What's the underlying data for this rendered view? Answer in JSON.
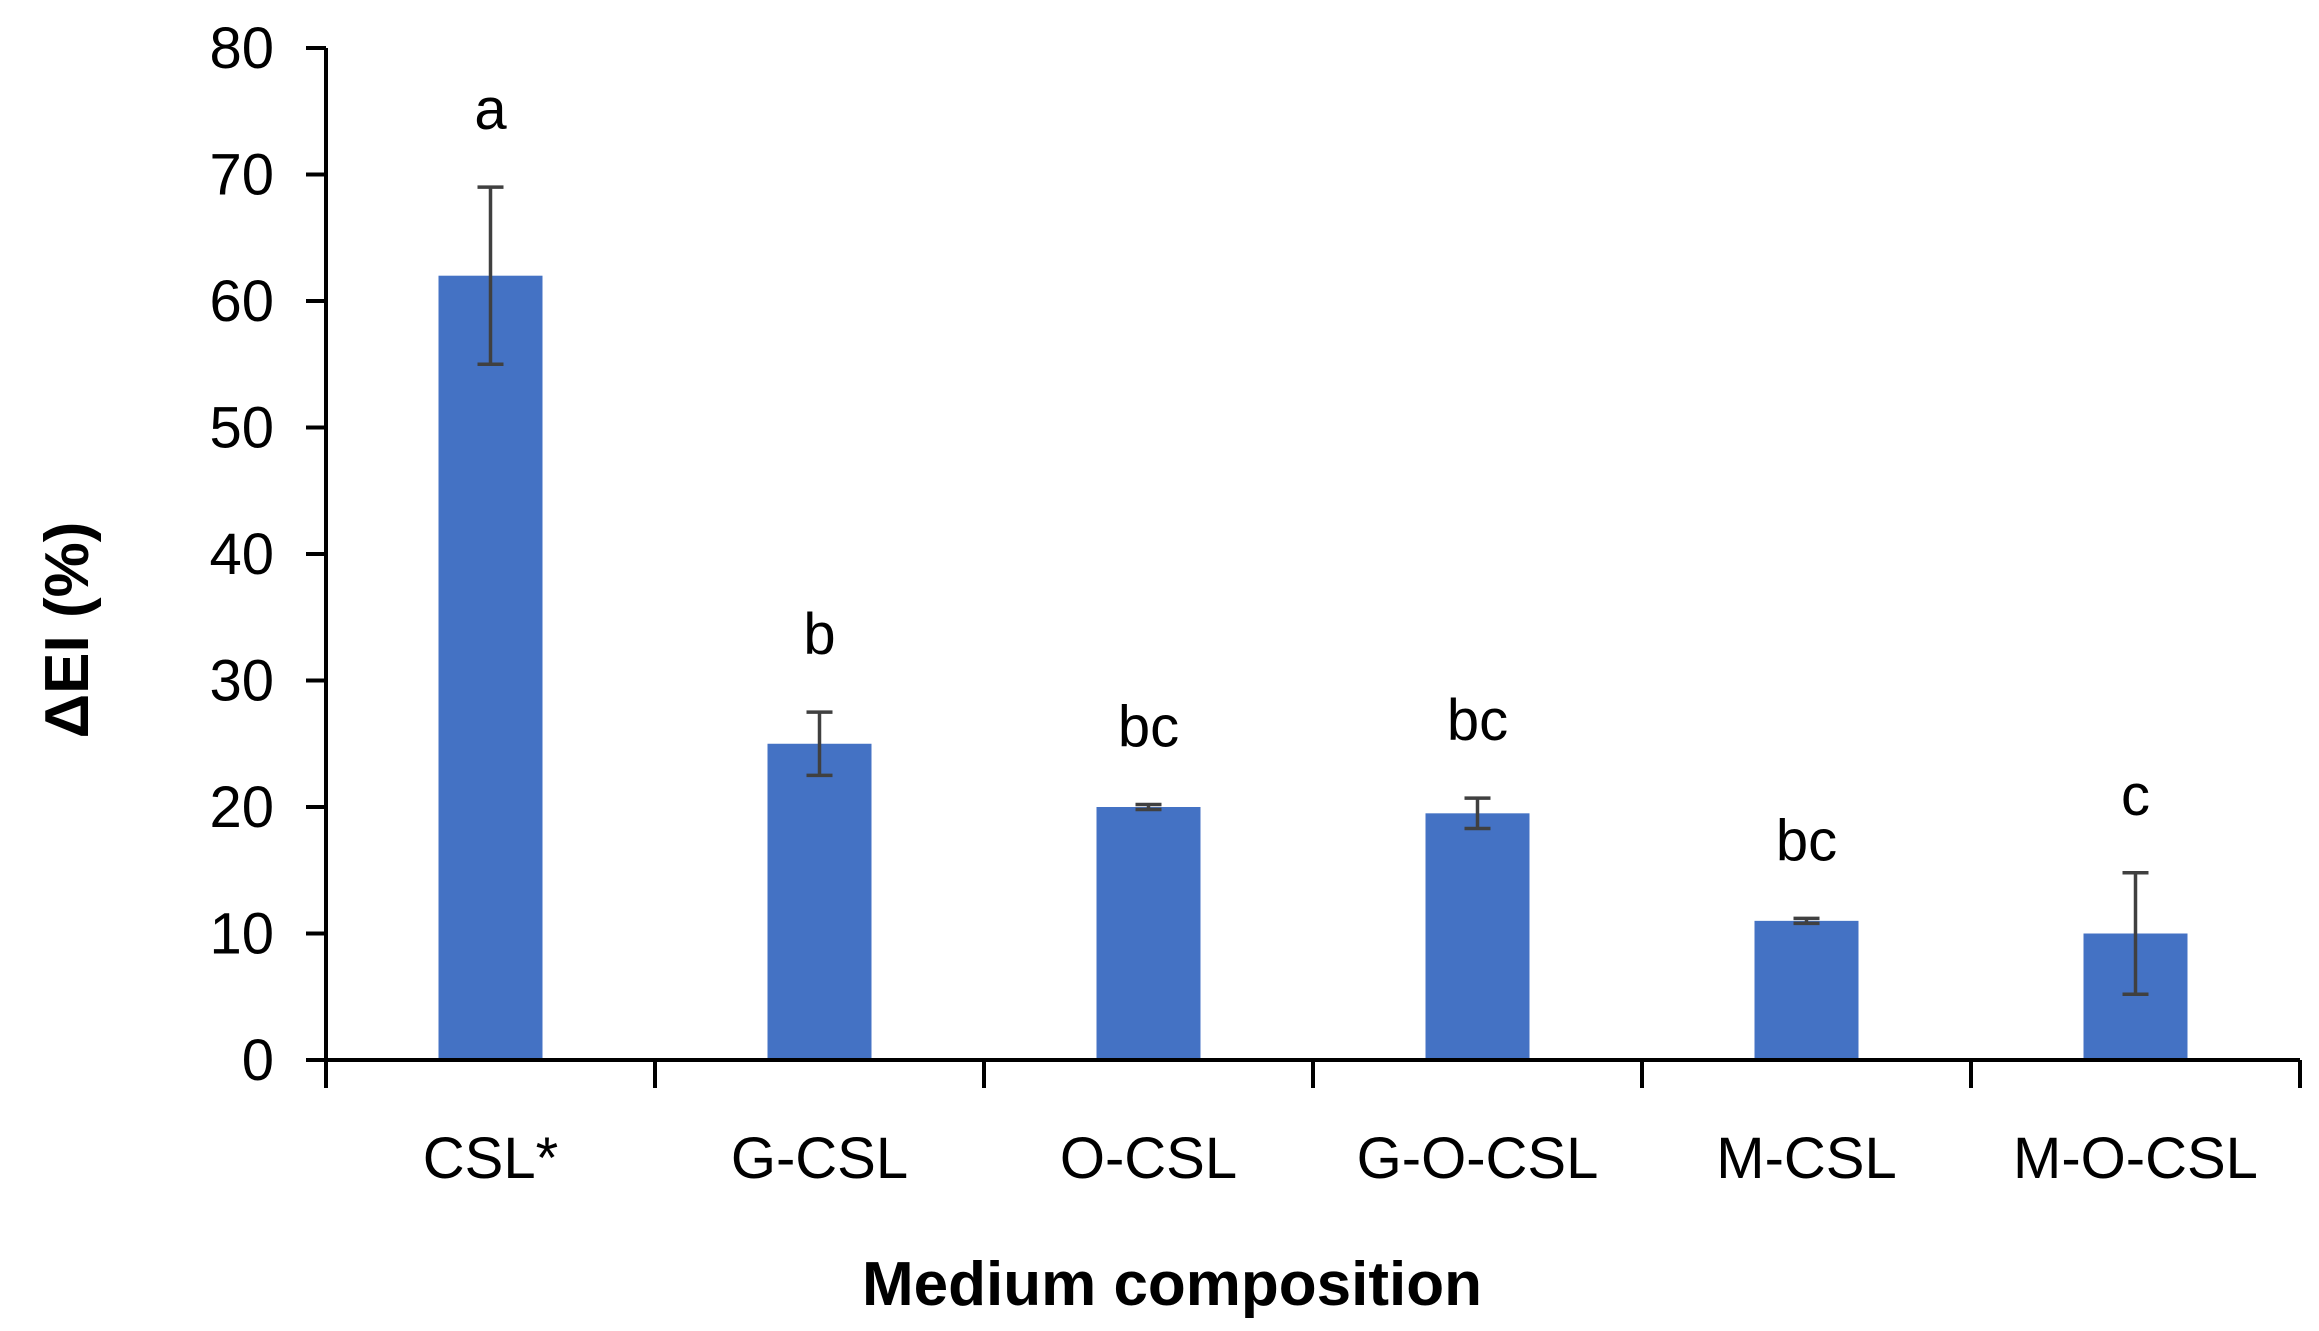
{
  "chart_data": {
    "type": "bar",
    "title": "",
    "xlabel": "Medium composition",
    "ylabel": "ΔEI (%)",
    "ylim": [
      0,
      80
    ],
    "yticks": [
      0,
      10,
      20,
      30,
      40,
      50,
      60,
      70,
      80
    ],
    "ytick_labels": [
      "0",
      "10",
      "20",
      "30",
      "40",
      "50",
      "60",
      "70",
      "80"
    ],
    "grid": false,
    "legend": "none",
    "categories": [
      "CSL*",
      "G-CSL",
      "O-CSL",
      "G-O-CSL",
      "M-CSL",
      "M-O-CSL"
    ],
    "values": [
      62,
      25,
      20,
      19.5,
      11,
      10
    ],
    "error": [
      7,
      2.5,
      0.2,
      1.2,
      0.2,
      4.8
    ],
    "significance_labels": [
      "a",
      "b",
      "bc",
      "bc",
      "bc",
      "c"
    ],
    "colors": {
      "bar": "#4472C4",
      "error_bar": "#404040",
      "axis": "#000000"
    }
  }
}
